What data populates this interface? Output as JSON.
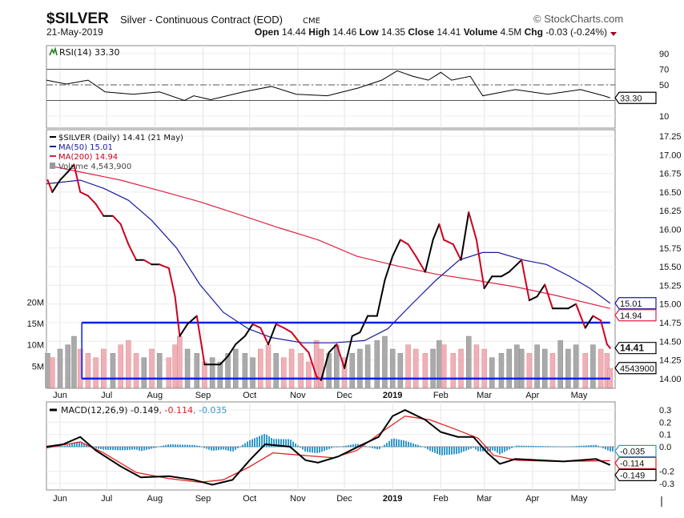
{
  "header": {
    "symbol": "$SILVER",
    "name": "Silver - Continuous Contract (EOD)",
    "exchange": "CME",
    "date": "21-May-2019",
    "copyright": "© StockCharts.com",
    "open_label": "Open",
    "open": "14.44",
    "high_label": "High",
    "high": "14.46",
    "low_label": "Low",
    "low": "14.35",
    "close_label": "Close",
    "close": "14.41",
    "volume_label": "Volume",
    "volume": "4.5M",
    "chg_label": "Chg",
    "chg": "-0.03 (-0.24%)",
    "chg_icon": "triangle-down-icon",
    "down_color": "#a00020"
  },
  "colors": {
    "price_up": "#000000",
    "price_down": "#cc0022",
    "ma50": "#1a1aa0",
    "ma200": "#dd2244",
    "trendline": "#0022ee",
    "histogram": "#3399cc",
    "volume_up": "#aaaaaa",
    "volume_down": "#f0b0b8"
  },
  "chart_data": [
    {
      "type": "line",
      "title": "RSI(14) 33.30",
      "legend": "RSI(14) 33.30",
      "current_value": "33.30",
      "ylim": [
        0,
        100
      ],
      "yticks": [
        "90",
        "70",
        "50",
        "10"
      ],
      "reference_lines": [
        70,
        50,
        30
      ],
      "series": [
        {
          "name": "RSI(14)",
          "points": [
            [
              "2018-05-23",
              56
            ],
            [
              "2018-06-05",
              51
            ],
            [
              "2018-06-19",
              56
            ],
            [
              "2018-06-30",
              41
            ],
            [
              "2018-07-18",
              38
            ],
            [
              "2018-08-04",
              41
            ],
            [
              "2018-08-20",
              30
            ],
            [
              "2018-08-26",
              36
            ],
            [
              "2018-09-06",
              31
            ],
            [
              "2018-09-27",
              41
            ],
            [
              "2018-10-15",
              48
            ],
            [
              "2018-10-31",
              38
            ],
            [
              "2018-11-20",
              36
            ],
            [
              "2018-12-10",
              46
            ],
            [
              "2018-12-25",
              56
            ],
            [
              "2019-01-04",
              68
            ],
            [
              "2019-01-14",
              61
            ],
            [
              "2019-01-24",
              56
            ],
            [
              "2019-02-01",
              66
            ],
            [
              "2019-02-08",
              56
            ],
            [
              "2019-02-20",
              61
            ],
            [
              "2019-02-28",
              36
            ],
            [
              "2019-03-21",
              44
            ],
            [
              "2019-04-11",
              38
            ],
            [
              "2019-05-02",
              44
            ],
            [
              "2019-05-17",
              36
            ],
            [
              "2019-05-21",
              33.3
            ]
          ]
        }
      ]
    },
    {
      "type": "line",
      "legend": [
        "$SILVER (Daily) 14.41 (21 May)",
        "MA(50) 15.01",
        "MA(200) 14.94",
        "Volume 4,543,900"
      ],
      "ylim": [
        13.87,
        17.34
      ],
      "yticks": [
        "17.25",
        "17.00",
        "16.75",
        "16.50",
        "16.25",
        "16.00",
        "15.75",
        "15.50",
        "15.25",
        "15.00",
        "14.75",
        "14.50",
        "14.25",
        "14.00"
      ],
      "volume_ticks": [
        "20M",
        "15M",
        "10M",
        "5M"
      ],
      "volume_ylim_millions": [
        0,
        22
      ],
      "xticks": [
        [
          "2018-06-01",
          "Jun"
        ],
        [
          "2018-07-01",
          "Jul"
        ],
        [
          "2018-08-01",
          "Aug"
        ],
        [
          "2018-09-01",
          "Sep"
        ],
        [
          "2018-10-01",
          "Oct"
        ],
        [
          "2018-11-01",
          "Nov"
        ],
        [
          "2018-12-01",
          "Dec"
        ],
        [
          "2019-01-01",
          "2019"
        ],
        [
          "2019-02-01",
          "Feb"
        ],
        [
          "2019-03-01",
          "Mar"
        ],
        [
          "2019-04-01",
          "Apr"
        ],
        [
          "2019-05-01",
          "May"
        ]
      ],
      "tags": {
        "ma50": "15.01",
        "ma200": "14.94",
        "close": "14.41",
        "volume": "4543900"
      },
      "trendlines": [
        {
          "from": "2018-06-15",
          "to": "2019-05-21",
          "value": 14.75
        },
        {
          "from": "2018-06-15",
          "to": "2019-05-21",
          "value": 14.0
        }
      ],
      "series_price": {
        "name": "$SILVER (Daily)",
        "points_date_close_volumeM": [
          [
            "2018-05-24",
            16.66,
            8
          ],
          [
            "2018-05-27",
            16.5,
            7
          ],
          [
            "2018-06-01",
            16.66,
            9
          ],
          [
            "2018-06-06",
            16.77,
            10
          ],
          [
            "2018-06-10",
            16.87,
            12
          ],
          [
            "2018-06-14",
            16.5,
            9
          ],
          [
            "2018-06-19",
            16.45,
            8
          ],
          [
            "2018-06-24",
            16.34,
            7
          ],
          [
            "2018-06-29",
            16.18,
            9
          ],
          [
            "2018-07-05",
            16.18,
            8
          ],
          [
            "2018-07-10",
            16.07,
            10
          ],
          [
            "2018-07-15",
            15.8,
            11
          ],
          [
            "2018-07-20",
            15.59,
            8
          ],
          [
            "2018-07-25",
            15.59,
            7
          ],
          [
            "2018-07-30",
            15.53,
            9
          ],
          [
            "2018-08-04",
            15.53,
            8
          ],
          [
            "2018-08-10",
            15.48,
            7
          ],
          [
            "2018-08-14",
            15.1,
            10
          ],
          [
            "2018-08-17",
            14.57,
            12
          ],
          [
            "2018-08-22",
            14.73,
            9
          ],
          [
            "2018-08-28",
            14.84,
            8
          ],
          [
            "2018-09-02",
            14.19,
            6
          ],
          [
            "2018-09-07",
            14.19,
            7
          ],
          [
            "2018-09-12",
            14.19,
            6
          ],
          [
            "2018-09-17",
            14.3,
            8
          ],
          [
            "2018-09-22",
            14.46,
            9
          ],
          [
            "2018-09-28",
            14.57,
            8
          ],
          [
            "2018-10-03",
            14.73,
            7
          ],
          [
            "2018-10-08",
            14.68,
            9
          ],
          [
            "2018-10-13",
            14.46,
            10
          ],
          [
            "2018-10-18",
            14.73,
            8
          ],
          [
            "2018-10-23",
            14.68,
            7
          ],
          [
            "2018-10-28",
            14.62,
            9
          ],
          [
            "2018-11-03",
            14.46,
            8
          ],
          [
            "2018-11-08",
            14.35,
            6
          ],
          [
            "2018-11-13",
            14.03,
            11
          ],
          [
            "2018-11-16",
            13.98,
            9
          ],
          [
            "2018-11-21",
            14.35,
            8
          ],
          [
            "2018-11-26",
            14.46,
            10
          ],
          [
            "2018-12-01",
            14.14,
            7
          ],
          [
            "2018-12-06",
            14.57,
            8
          ],
          [
            "2018-12-11",
            14.62,
            9
          ],
          [
            "2018-12-16",
            14.84,
            10
          ],
          [
            "2018-12-22",
            14.84,
            11
          ],
          [
            "2018-12-27",
            15.32,
            12
          ],
          [
            "2019-01-01",
            15.64,
            9
          ],
          [
            "2019-01-06",
            15.86,
            8
          ],
          [
            "2019-01-11",
            15.8,
            10
          ],
          [
            "2019-01-16",
            15.64,
            9
          ],
          [
            "2019-01-22",
            15.43,
            8
          ],
          [
            "2019-01-27",
            15.86,
            9
          ],
          [
            "2019-01-31",
            16.07,
            11
          ],
          [
            "2019-02-03",
            15.86,
            10
          ],
          [
            "2019-02-09",
            15.8,
            8
          ],
          [
            "2019-02-14",
            15.59,
            9
          ],
          [
            "2019-02-19",
            16.23,
            12
          ],
          [
            "2019-02-24",
            15.86,
            10
          ],
          [
            "2019-03-01",
            15.21,
            9
          ],
          [
            "2019-03-06",
            15.37,
            7
          ],
          [
            "2019-03-12",
            15.37,
            8
          ],
          [
            "2019-03-17",
            15.43,
            9
          ],
          [
            "2019-03-22",
            15.53,
            10
          ],
          [
            "2019-03-25",
            15.59,
            9
          ],
          [
            "2019-03-30",
            15.05,
            8
          ],
          [
            "2019-04-04",
            15.1,
            10
          ],
          [
            "2019-04-09",
            15.26,
            9
          ],
          [
            "2019-04-14",
            14.94,
            8
          ],
          [
            "2019-04-19",
            14.94,
            11
          ],
          [
            "2019-04-24",
            14.94,
            9
          ],
          [
            "2019-04-29",
            15.0,
            10
          ],
          [
            "2019-05-05",
            14.68,
            8
          ],
          [
            "2019-05-10",
            14.84,
            10
          ],
          [
            "2019-05-15",
            14.78,
            9
          ],
          [
            "2019-05-19",
            14.46,
            8
          ],
          [
            "2019-05-21",
            14.41,
            4.5
          ]
        ]
      },
      "series_ma50": {
        "name": "MA(50)",
        "points": [
          [
            "2018-05-23",
            16.61
          ],
          [
            "2018-06-14",
            16.66
          ],
          [
            "2018-06-29",
            16.55
          ],
          [
            "2018-07-15",
            16.39
          ],
          [
            "2018-07-30",
            16.12
          ],
          [
            "2018-08-15",
            15.75
          ],
          [
            "2018-08-30",
            15.26
          ],
          [
            "2018-09-14",
            14.89
          ],
          [
            "2018-09-30",
            14.67
          ],
          [
            "2018-10-15",
            14.55
          ],
          [
            "2018-11-04",
            14.48
          ],
          [
            "2018-11-24",
            14.48
          ],
          [
            "2018-12-14",
            14.51
          ],
          [
            "2018-12-29",
            14.67
          ],
          [
            "2019-01-13",
            14.99
          ],
          [
            "2019-01-29",
            15.32
          ],
          [
            "2019-02-13",
            15.59
          ],
          [
            "2019-02-28",
            15.69
          ],
          [
            "2019-03-10",
            15.69
          ],
          [
            "2019-03-26",
            15.59
          ],
          [
            "2019-04-10",
            15.53
          ],
          [
            "2019-04-25",
            15.37
          ],
          [
            "2019-05-08",
            15.21
          ],
          [
            "2019-05-21",
            15.01
          ]
        ]
      },
      "series_ma200": {
        "name": "MA(200)",
        "points": [
          [
            "2018-05-28",
            16.84
          ],
          [
            "2018-06-14",
            16.77
          ],
          [
            "2018-07-10",
            16.66
          ],
          [
            "2018-08-04",
            16.52
          ],
          [
            "2018-08-30",
            16.37
          ],
          [
            "2018-09-24",
            16.2
          ],
          [
            "2018-10-20",
            16.02
          ],
          [
            "2018-11-14",
            15.86
          ],
          [
            "2018-12-09",
            15.64
          ],
          [
            "2019-01-04",
            15.51
          ],
          [
            "2019-01-29",
            15.4
          ],
          [
            "2019-02-23",
            15.32
          ],
          [
            "2019-03-21",
            15.23
          ],
          [
            "2019-04-15",
            15.12
          ],
          [
            "2019-05-21",
            14.94
          ]
        ]
      }
    },
    {
      "type": "line",
      "legend": [
        "MACD(12,26,9) -0.149",
        "-0.114",
        "-0.035"
      ],
      "ylim": [
        -0.35,
        0.35
      ],
      "yticks": [
        "0.3",
        "0.2",
        "0.1",
        "0.0",
        "-0.2",
        "-0.3"
      ],
      "tags": {
        "macd": "-0.149",
        "signal": "-0.114",
        "histogram": "-0.035"
      },
      "series_macd": {
        "name": "MACD",
        "points": [
          [
            "2018-05-23",
            0.0
          ],
          [
            "2018-06-03",
            0.02
          ],
          [
            "2018-06-14",
            0.08
          ],
          [
            "2018-06-24",
            -0.03
          ],
          [
            "2018-07-10",
            -0.16
          ],
          [
            "2018-07-23",
            -0.25
          ],
          [
            "2018-08-10",
            -0.24
          ],
          [
            "2018-08-26",
            -0.27
          ],
          [
            "2018-09-07",
            -0.31
          ],
          [
            "2018-09-20",
            -0.27
          ],
          [
            "2018-10-01",
            -0.11
          ],
          [
            "2018-10-11",
            0.02
          ],
          [
            "2018-10-27",
            0.0
          ],
          [
            "2018-11-06",
            -0.11
          ],
          [
            "2018-11-14",
            -0.13
          ],
          [
            "2018-11-27",
            -0.08
          ],
          [
            "2018-12-13",
            0.02
          ],
          [
            "2018-12-23",
            0.08
          ],
          [
            "2019-01-01",
            0.25
          ],
          [
            "2019-01-09",
            0.3
          ],
          [
            "2019-01-22",
            0.22
          ],
          [
            "2019-02-01",
            0.12
          ],
          [
            "2019-02-12",
            0.08
          ],
          [
            "2019-02-22",
            0.08
          ],
          [
            "2019-03-03",
            -0.05
          ],
          [
            "2019-03-11",
            -0.14
          ],
          [
            "2019-03-21",
            -0.1
          ],
          [
            "2019-04-06",
            -0.11
          ],
          [
            "2019-04-21",
            -0.12
          ],
          [
            "2019-05-12",
            -0.1
          ],
          [
            "2019-05-21",
            -0.149
          ]
        ]
      },
      "series_signal": {
        "name": "Signal",
        "points": [
          [
            "2018-05-23",
            -0.01
          ],
          [
            "2018-06-14",
            0.04
          ],
          [
            "2018-06-29",
            -0.05
          ],
          [
            "2018-07-20",
            -0.21
          ],
          [
            "2018-08-10",
            -0.26
          ],
          [
            "2018-08-30",
            -0.29
          ],
          [
            "2018-09-14",
            -0.27
          ],
          [
            "2018-09-30",
            -0.17
          ],
          [
            "2018-10-16",
            -0.05
          ],
          [
            "2018-11-04",
            -0.07
          ],
          [
            "2018-11-24",
            -0.09
          ],
          [
            "2018-12-09",
            -0.03
          ],
          [
            "2018-12-25",
            0.12
          ],
          [
            "2019-01-09",
            0.25
          ],
          [
            "2019-01-25",
            0.22
          ],
          [
            "2019-02-09",
            0.15
          ],
          [
            "2019-02-25",
            0.07
          ],
          [
            "2019-03-07",
            -0.07
          ],
          [
            "2019-03-22",
            -0.11
          ],
          [
            "2019-04-16",
            -0.12
          ],
          [
            "2019-05-21",
            -0.114
          ]
        ]
      }
    }
  ]
}
